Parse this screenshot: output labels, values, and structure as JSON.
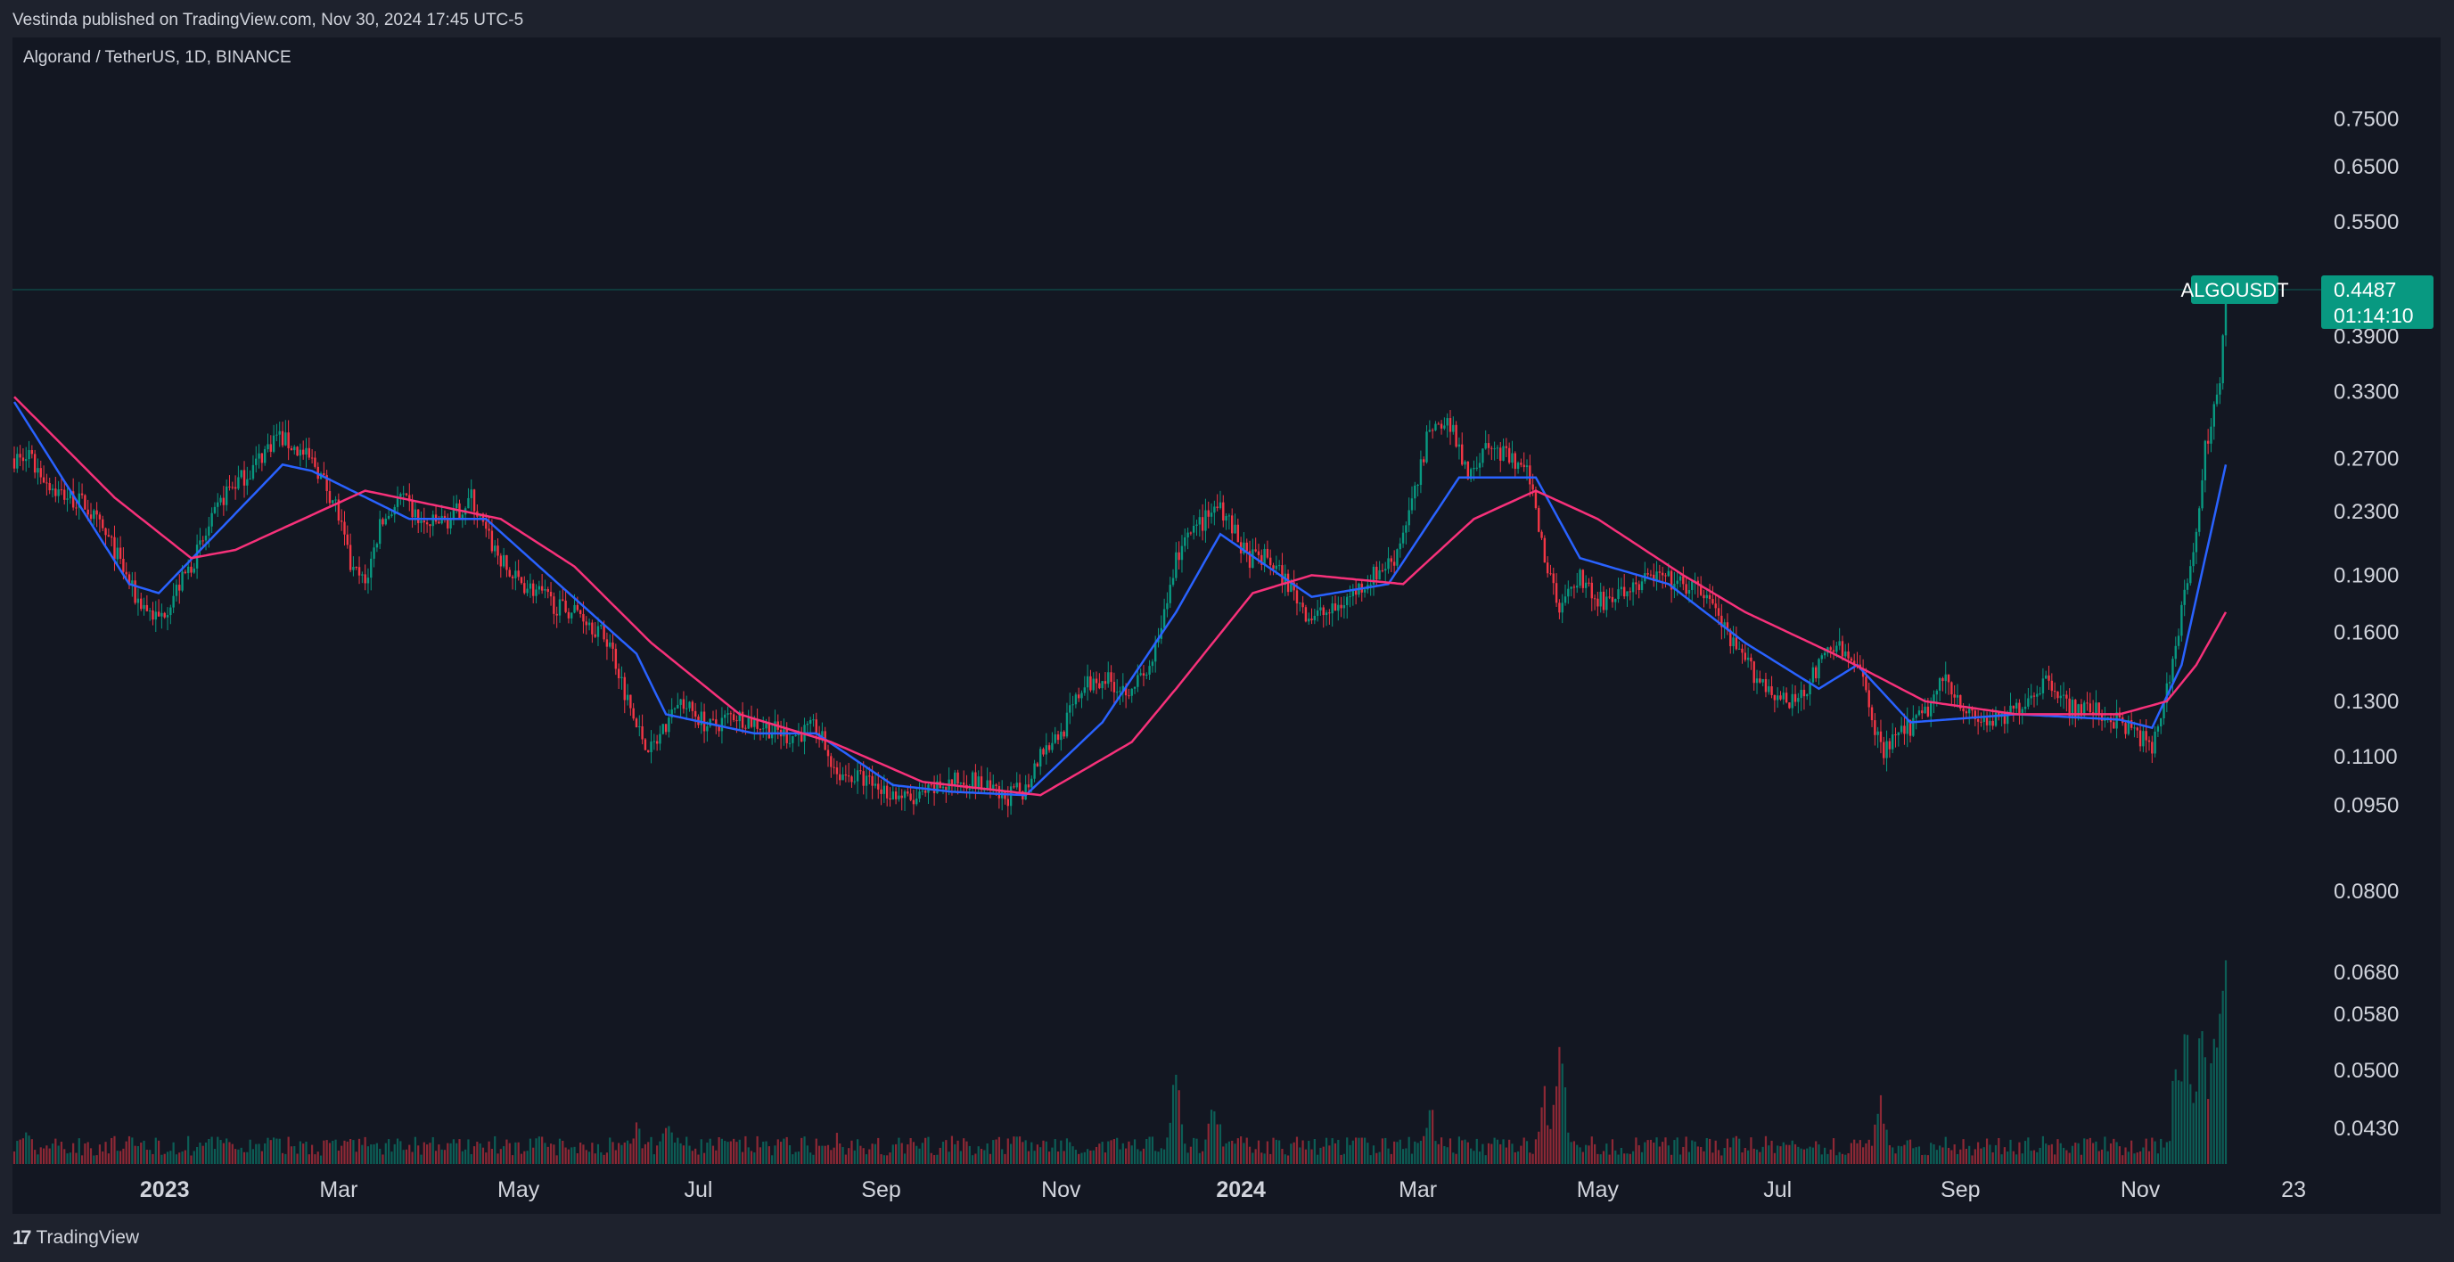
{
  "header": {
    "published": "Vestinda published on TradingView.com, Nov 30, 2024 17:45 UTC-5",
    "symbol_line": "Algorand / TetherUS, 1D, BINANCE"
  },
  "footer": {
    "brand": "TradingView",
    "brand_mark": "17"
  },
  "price_tag": {
    "symbol": "ALGOUSDT",
    "price": "0.4487",
    "countdown": "01:14:10",
    "color": "#089981"
  },
  "colors": {
    "up": "#089981",
    "down": "#f23645",
    "ma_fast": "#2962ff",
    "ma_slow": "#f7317a",
    "background": "#131722"
  },
  "chart_data": {
    "type": "candlestick",
    "scale": "log",
    "interval": "1D",
    "x_start": "2022-11-11",
    "x_end": "2024-11-30",
    "price_axis_labels": [
      "0.7500",
      "0.6500",
      "0.5500",
      "0.3900",
      "0.3300",
      "0.2700",
      "0.2300",
      "0.1900",
      "0.1600",
      "0.1300",
      "0.1100",
      "0.0950",
      "0.0800",
      "0.0680",
      "0.0580",
      "0.0500",
      "0.0430"
    ],
    "time_axis_labels": [
      {
        "label": "2023",
        "date": "2023-01-01",
        "bold": true
      },
      {
        "label": "Mar",
        "date": "2023-03-01"
      },
      {
        "label": "May",
        "date": "2023-05-01"
      },
      {
        "label": "Jul",
        "date": "2023-07-01"
      },
      {
        "label": "Sep",
        "date": "2023-09-01"
      },
      {
        "label": "Nov",
        "date": "2023-11-01"
      },
      {
        "label": "2024",
        "date": "2024-01-01",
        "bold": true
      },
      {
        "label": "Mar",
        "date": "2024-03-01"
      },
      {
        "label": "May",
        "date": "2024-05-01"
      },
      {
        "label": "Jul",
        "date": "2024-07-01"
      },
      {
        "label": "Sep",
        "date": "2024-09-01"
      },
      {
        "label": "Nov",
        "date": "2024-11-01"
      },
      {
        "label": "23",
        "date": "2024-12-23"
      }
    ],
    "price_path": [
      [
        "2022-11-11",
        0.27
      ],
      [
        "2022-11-16",
        0.27
      ],
      [
        "2022-11-25",
        0.245
      ],
      [
        "2022-12-05",
        0.235
      ],
      [
        "2022-12-15",
        0.205
      ],
      [
        "2022-12-22",
        0.178
      ],
      [
        "2022-12-30",
        0.166
      ],
      [
        "2023-01-08",
        0.19
      ],
      [
        "2023-01-14",
        0.21
      ],
      [
        "2023-01-22",
        0.245
      ],
      [
        "2023-01-30",
        0.26
      ],
      [
        "2023-02-08",
        0.29
      ],
      [
        "2023-02-16",
        0.275
      ],
      [
        "2023-02-21",
        0.265
      ],
      [
        "2023-02-28",
        0.235
      ],
      [
        "2023-03-05",
        0.195
      ],
      [
        "2023-03-10",
        0.185
      ],
      [
        "2023-03-15",
        0.22
      ],
      [
        "2023-03-22",
        0.24
      ],
      [
        "2023-03-30",
        0.22
      ],
      [
        "2023-04-08",
        0.225
      ],
      [
        "2023-04-15",
        0.24
      ],
      [
        "2023-04-20",
        0.215
      ],
      [
        "2023-04-28",
        0.19
      ],
      [
        "2023-05-08",
        0.18
      ],
      [
        "2023-05-15",
        0.172
      ],
      [
        "2023-05-22",
        0.17
      ],
      [
        "2023-06-01",
        0.155
      ],
      [
        "2023-06-10",
        0.12
      ],
      [
        "2023-06-15",
        0.112
      ],
      [
        "2023-06-25",
        0.13
      ],
      [
        "2023-07-05",
        0.12
      ],
      [
        "2023-07-13",
        0.125
      ],
      [
        "2023-07-20",
        0.122
      ],
      [
        "2023-08-01",
        0.117
      ],
      [
        "2023-08-10",
        0.12
      ],
      [
        "2023-08-17",
        0.105
      ],
      [
        "2023-08-25",
        0.103
      ],
      [
        "2023-09-01",
        0.1
      ],
      [
        "2023-09-12",
        0.096
      ],
      [
        "2023-09-22",
        0.101
      ],
      [
        "2023-10-01",
        0.103
      ],
      [
        "2023-10-12",
        0.097
      ],
      [
        "2023-10-20",
        0.1
      ],
      [
        "2023-10-25",
        0.112
      ],
      [
        "2023-11-01",
        0.118
      ],
      [
        "2023-11-08",
        0.135
      ],
      [
        "2023-11-15",
        0.14
      ],
      [
        "2023-11-22",
        0.135
      ],
      [
        "2023-11-30",
        0.14
      ],
      [
        "2023-12-05",
        0.16
      ],
      [
        "2023-12-10",
        0.2
      ],
      [
        "2023-12-15",
        0.215
      ],
      [
        "2023-12-25",
        0.235
      ],
      [
        "2024-01-03",
        0.2
      ],
      [
        "2024-01-10",
        0.2
      ],
      [
        "2024-01-17",
        0.185
      ],
      [
        "2024-01-24",
        0.168
      ],
      [
        "2024-02-01",
        0.17
      ],
      [
        "2024-02-08",
        0.18
      ],
      [
        "2024-02-15",
        0.19
      ],
      [
        "2024-02-22",
        0.2
      ],
      [
        "2024-03-01",
        0.25
      ],
      [
        "2024-03-05",
        0.3
      ],
      [
        "2024-03-12",
        0.3
      ],
      [
        "2024-03-18",
        0.26
      ],
      [
        "2024-03-25",
        0.28
      ],
      [
        "2024-04-01",
        0.27
      ],
      [
        "2024-04-08",
        0.255
      ],
      [
        "2024-04-13",
        0.2
      ],
      [
        "2024-04-18",
        0.175
      ],
      [
        "2024-04-25",
        0.19
      ],
      [
        "2024-05-01",
        0.175
      ],
      [
        "2024-05-10",
        0.18
      ],
      [
        "2024-05-20",
        0.19
      ],
      [
        "2024-05-28",
        0.185
      ],
      [
        "2024-06-07",
        0.18
      ],
      [
        "2024-06-15",
        0.155
      ],
      [
        "2024-06-24",
        0.14
      ],
      [
        "2024-07-05",
        0.128
      ],
      [
        "2024-07-12",
        0.138
      ],
      [
        "2024-07-20",
        0.155
      ],
      [
        "2024-07-30",
        0.14
      ],
      [
        "2024-08-05",
        0.112
      ],
      [
        "2024-08-12",
        0.118
      ],
      [
        "2024-08-20",
        0.125
      ],
      [
        "2024-08-27",
        0.14
      ],
      [
        "2024-09-05",
        0.123
      ],
      [
        "2024-09-15",
        0.122
      ],
      [
        "2024-09-25",
        0.133
      ],
      [
        "2024-10-01",
        0.14
      ],
      [
        "2024-10-08",
        0.127
      ],
      [
        "2024-10-15",
        0.127
      ],
      [
        "2024-10-25",
        0.122
      ],
      [
        "2024-11-01",
        0.117
      ],
      [
        "2024-11-05",
        0.112
      ],
      [
        "2024-11-10",
        0.135
      ],
      [
        "2024-11-14",
        0.16
      ],
      [
        "2024-11-17",
        0.19
      ],
      [
        "2024-11-20",
        0.22
      ],
      [
        "2024-11-23",
        0.28
      ],
      [
        "2024-11-25",
        0.3
      ],
      [
        "2024-11-28",
        0.33
      ],
      [
        "2024-11-30",
        0.4487
      ]
    ],
    "moving_averages": [
      {
        "color": "#2962ff",
        "points": [
          [
            "2022-11-11",
            0.32
          ],
          [
            "2022-12-20",
            0.185
          ],
          [
            "2022-12-30",
            0.18
          ],
          [
            "2023-02-10",
            0.265
          ],
          [
            "2023-02-20",
            0.26
          ],
          [
            "2023-03-25",
            0.225
          ],
          [
            "2023-04-20",
            0.225
          ],
          [
            "2023-06-10",
            0.15
          ],
          [
            "2023-06-20",
            0.125
          ],
          [
            "2023-07-20",
            0.118
          ],
          [
            "2023-08-10",
            0.118
          ],
          [
            "2023-09-05",
            0.101
          ],
          [
            "2023-09-25",
            0.099
          ],
          [
            "2023-10-20",
            0.098
          ],
          [
            "2023-11-15",
            0.122
          ],
          [
            "2023-12-10",
            0.17
          ],
          [
            "2023-12-25",
            0.215
          ],
          [
            "2024-01-25",
            0.178
          ],
          [
            "2024-02-20",
            0.185
          ],
          [
            "2024-03-15",
            0.255
          ],
          [
            "2024-04-10",
            0.255
          ],
          [
            "2024-04-25",
            0.2
          ],
          [
            "2024-05-25",
            0.185
          ],
          [
            "2024-06-20",
            0.155
          ],
          [
            "2024-07-15",
            0.135
          ],
          [
            "2024-07-28",
            0.145
          ],
          [
            "2024-08-15",
            0.122
          ],
          [
            "2024-09-20",
            0.125
          ],
          [
            "2024-10-25",
            0.123
          ],
          [
            "2024-11-05",
            0.12
          ],
          [
            "2024-11-15",
            0.145
          ],
          [
            "2024-11-30",
            0.265
          ]
        ]
      },
      {
        "color": "#f7317a",
        "points": [
          [
            "2022-11-11",
            0.325
          ],
          [
            "2022-12-15",
            0.24
          ],
          [
            "2023-01-10",
            0.2
          ],
          [
            "2023-01-25",
            0.205
          ],
          [
            "2023-03-10",
            0.245
          ],
          [
            "2023-04-25",
            0.225
          ],
          [
            "2023-05-20",
            0.195
          ],
          [
            "2023-06-15",
            0.155
          ],
          [
            "2023-07-15",
            0.125
          ],
          [
            "2023-08-15",
            0.115
          ],
          [
            "2023-09-15",
            0.102
          ],
          [
            "2023-10-25",
            0.098
          ],
          [
            "2023-11-25",
            0.115
          ],
          [
            "2023-12-10",
            0.135
          ],
          [
            "2024-01-05",
            0.18
          ],
          [
            "2024-01-25",
            0.19
          ],
          [
            "2024-02-25",
            0.185
          ],
          [
            "2024-03-20",
            0.225
          ],
          [
            "2024-04-10",
            0.245
          ],
          [
            "2024-05-01",
            0.225
          ],
          [
            "2024-05-30",
            0.19
          ],
          [
            "2024-06-20",
            0.17
          ],
          [
            "2024-07-20",
            0.15
          ],
          [
            "2024-08-20",
            0.13
          ],
          [
            "2024-09-20",
            0.125
          ],
          [
            "2024-10-25",
            0.125
          ],
          [
            "2024-11-10",
            0.13
          ],
          [
            "2024-11-20",
            0.145
          ],
          [
            "2024-11-30",
            0.17
          ]
        ]
      }
    ],
    "volume_spikes": [
      [
        "2022-11-15",
        0.14
      ],
      [
        "2023-03-10",
        0.12
      ],
      [
        "2023-06-10",
        0.18
      ],
      [
        "2023-06-21",
        0.22
      ],
      [
        "2023-08-17",
        0.12
      ],
      [
        "2023-10-20",
        0.1
      ],
      [
        "2023-12-10",
        0.44
      ],
      [
        "2023-12-23",
        0.3
      ],
      [
        "2024-03-05",
        0.26
      ],
      [
        "2024-04-13",
        0.28
      ],
      [
        "2024-04-18",
        0.58
      ],
      [
        "2024-08-05",
        0.32
      ],
      [
        "2024-11-16",
        0.35
      ],
      [
        "2024-11-22",
        0.6
      ],
      [
        "2024-11-26",
        0.58
      ],
      [
        "2024-11-29",
        1.0
      ],
      [
        "2024-11-30",
        0.65
      ]
    ]
  }
}
